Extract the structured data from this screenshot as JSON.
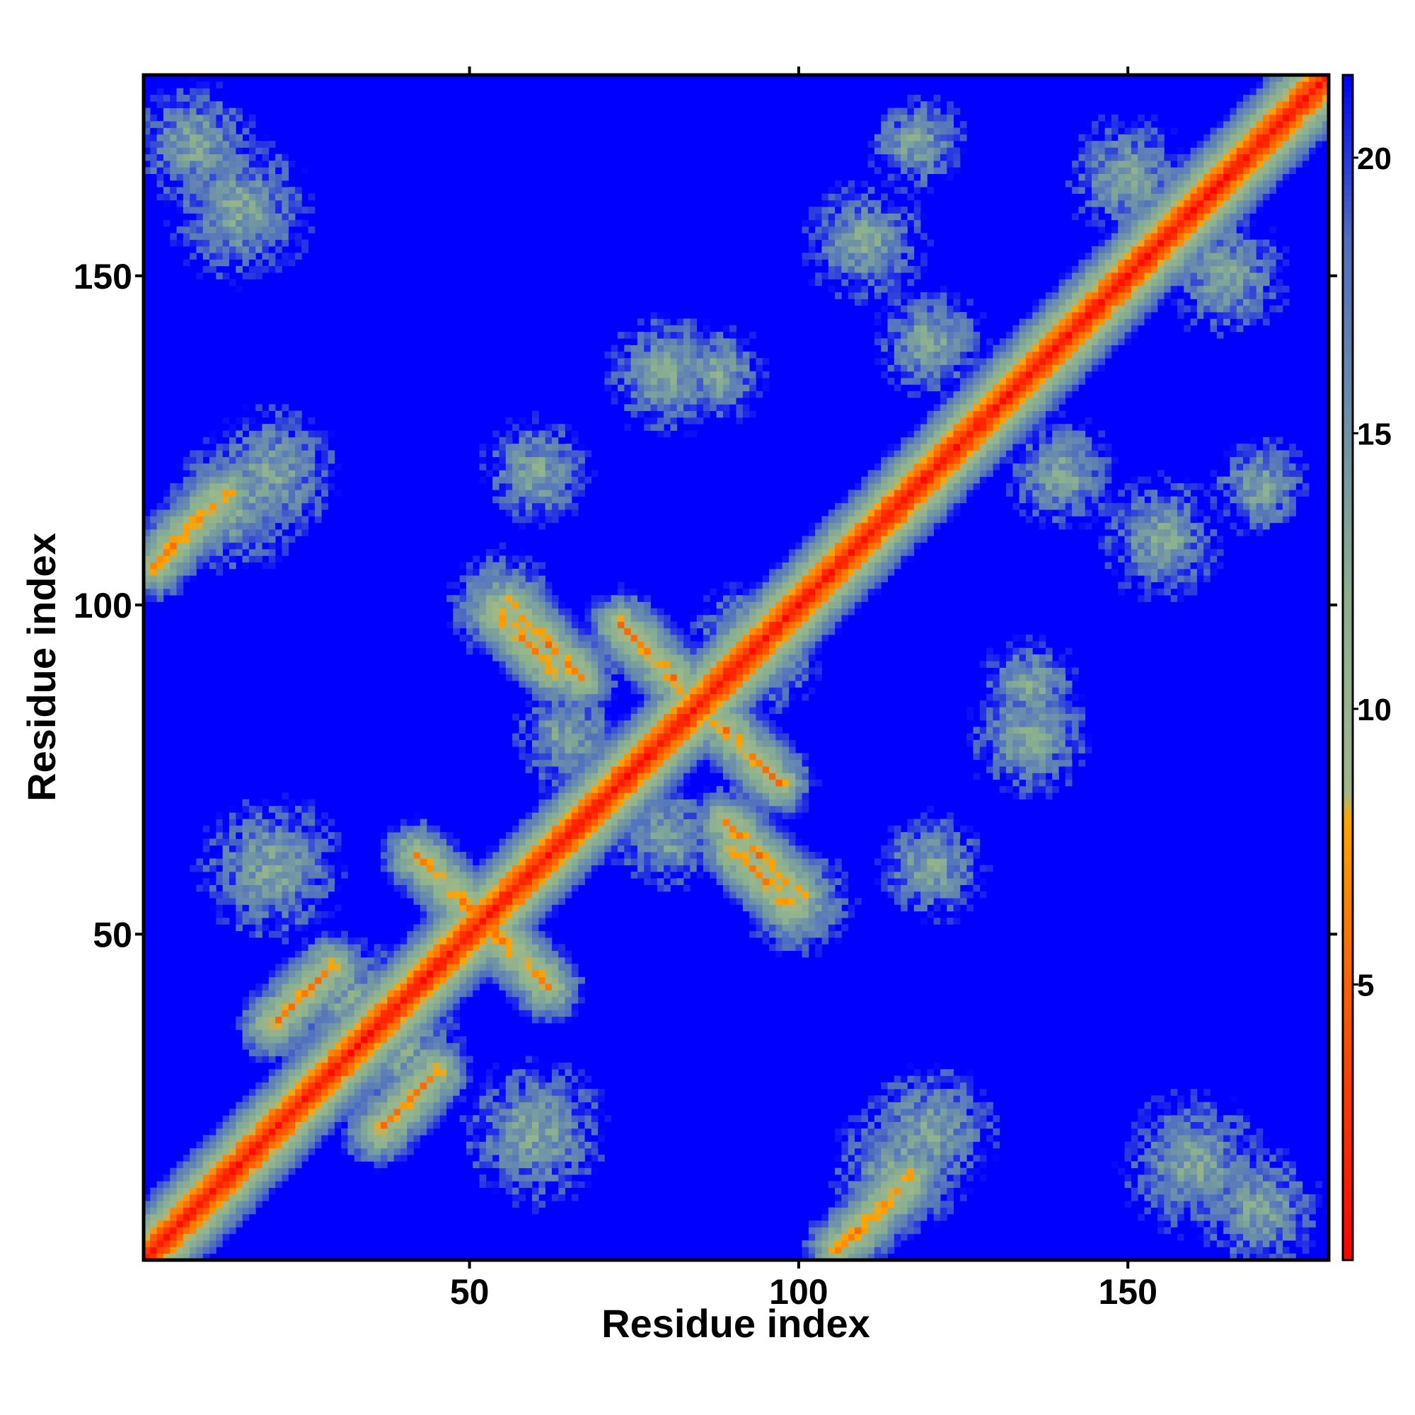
{
  "chart_data": {
    "type": "heatmap",
    "title": "",
    "xlabel": "Residue index",
    "ylabel": "Residue index",
    "n_residues": 180,
    "xlim": [
      1,
      180
    ],
    "ylim": [
      1,
      180
    ],
    "x_ticks": [
      50,
      100,
      150
    ],
    "y_ticks": [
      50,
      100,
      150
    ],
    "colorbar": {
      "min": 0,
      "max": 21.5,
      "ticks": [
        5,
        10,
        15,
        20
      ],
      "colors": [
        {
          "value": 0,
          "color": "#ff0000"
        },
        {
          "value": 5.5,
          "color": "#ff6a00"
        },
        {
          "value": 8.0,
          "color": "#ffa500"
        },
        {
          "value": 8.5,
          "color": "#a0b888"
        },
        {
          "value": 12.0,
          "color": "#8ab090"
        },
        {
          "value": 16.0,
          "color": "#6688b0"
        },
        {
          "value": 18.5,
          "color": "#5070c0"
        },
        {
          "value": 21.5,
          "color": "#0000ff"
        }
      ]
    },
    "contact_threshold": 21.5,
    "background_color": "#0000ff",
    "description_values": {
      "diagonal_distance": 0,
      "features": [
        {
          "kind": "antiparallel",
          "i_start": 42,
          "j_start": 62,
          "length": 14
        },
        {
          "kind": "antiparallel",
          "i_start": 56,
          "j_start": 100,
          "length": 12
        },
        {
          "kind": "antiparallel",
          "i_start": 73,
          "j_start": 97,
          "length": 10
        },
        {
          "kind": "antiparallel",
          "i_start": 90,
          "j_start": 63,
          "length": 10
        },
        {
          "kind": "parallel",
          "i_start": 36,
          "j_start": 20,
          "length": 10
        },
        {
          "kind": "parallel",
          "i_start": 106,
          "j_start": 2,
          "length": 12
        }
      ]
    }
  }
}
